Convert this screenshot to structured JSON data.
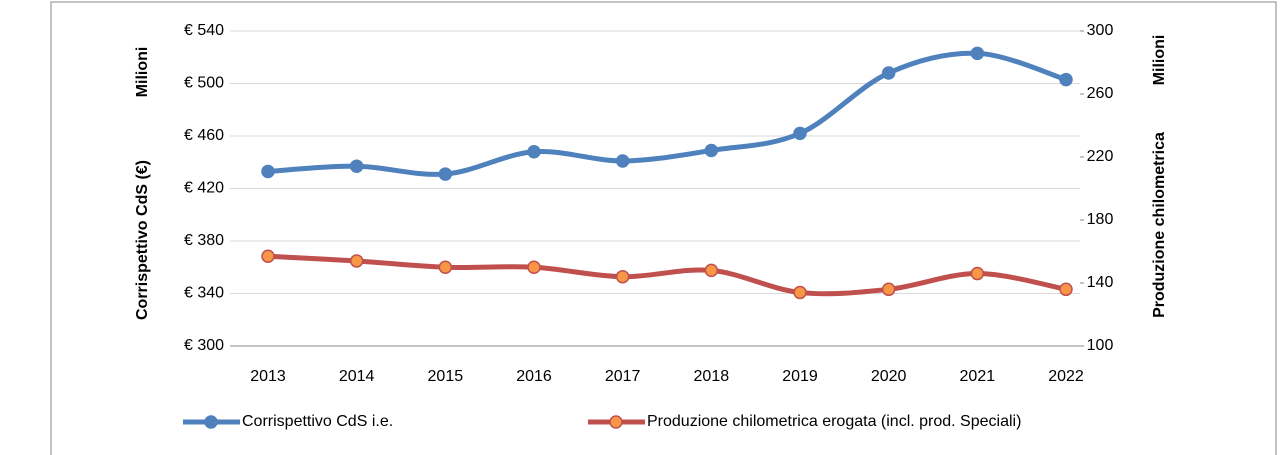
{
  "chart_data": {
    "type": "line",
    "categories": [
      "2013",
      "2014",
      "2015",
      "2016",
      "2017",
      "2018",
      "2019",
      "2020",
      "2021",
      "2022"
    ],
    "series": [
      {
        "name": "Corrispettivo CdS i.e.",
        "color": "#4f81bd",
        "marker_fill": "#4f81bd",
        "values": [
          433,
          437,
          431,
          448,
          441,
          449,
          462,
          508,
          523,
          503
        ]
      },
      {
        "name": "Produzione chilometrica erogata (incl. prod. Speciali)",
        "color": "#c0504d",
        "marker_fill": "#f79646",
        "axis": "y2",
        "values": [
          157,
          154,
          150,
          150,
          144,
          148,
          134,
          136,
          146,
          136
        ]
      }
    ],
    "ylabel": "Corrispettivo CdS (€)",
    "ylabel_unit": "Milioni",
    "y2label": "Produzione chilometrica",
    "y2label_unit": "Milioni",
    "ylim": [
      300,
      540
    ],
    "yticks": [
      {
        "value": 300,
        "label": "€ 300"
      },
      {
        "value": 340,
        "label": "€ 340"
      },
      {
        "value": 380,
        "label": "€ 380"
      },
      {
        "value": 420,
        "label": "€ 420"
      },
      {
        "value": 460,
        "label": "€ 460"
      },
      {
        "value": 500,
        "label": "€ 500"
      },
      {
        "value": 540,
        "label": "€ 540"
      }
    ],
    "y2lim": [
      100,
      300
    ],
    "y2ticks": [
      100,
      140,
      180,
      220,
      260,
      300
    ],
    "grid": true,
    "smooth": true,
    "legend": "bottom"
  }
}
